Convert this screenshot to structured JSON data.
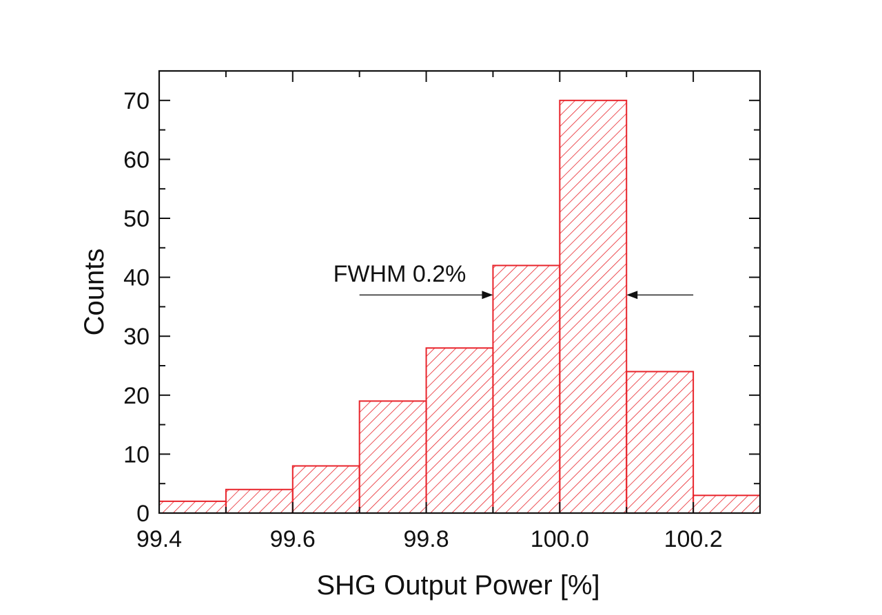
{
  "chart_data": {
    "type": "bar",
    "subtype": "histogram",
    "bins": [
      {
        "x0": 99.4,
        "x1": 99.5,
        "count": 2
      },
      {
        "x0": 99.5,
        "x1": 99.6,
        "count": 4
      },
      {
        "x0": 99.6,
        "x1": 99.7,
        "count": 8
      },
      {
        "x0": 99.7,
        "x1": 99.8,
        "count": 19
      },
      {
        "x0": 99.8,
        "x1": 99.9,
        "count": 28
      },
      {
        "x0": 99.9,
        "x1": 100.0,
        "count": 42
      },
      {
        "x0": 100.0,
        "x1": 100.1,
        "count": 70
      },
      {
        "x0": 100.1,
        "x1": 100.2,
        "count": 24
      },
      {
        "x0": 100.2,
        "x1": 100.3,
        "count": 3
      }
    ],
    "xlabel": "SHG Output Power [%]",
    "ylabel": "Counts",
    "xlim": [
      99.4,
      100.3
    ],
    "ylim": [
      0,
      75
    ],
    "xticks": [
      "99.4",
      "99.6",
      "99.8",
      "100.0",
      "100.2"
    ],
    "yticks": [
      "0",
      "10",
      "20",
      "30",
      "40",
      "50",
      "60",
      "70"
    ],
    "bar_color": "#e8232a",
    "fill_pattern": "diagonal-hatch",
    "grid": false,
    "annotation": {
      "text": "FWHM 0.2%",
      "y": 37,
      "arrow_left": {
        "from": 99.7,
        "to": 99.9
      },
      "arrow_right": {
        "from": 100.2,
        "to": 100.1
      }
    }
  }
}
